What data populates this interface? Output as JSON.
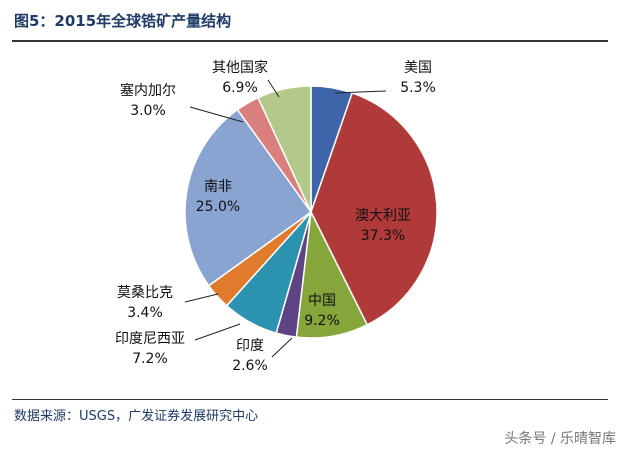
{
  "title": "图5：2015年全球锆矿产量结构",
  "source": "数据来源：USGS，广发证券发展研究中心",
  "watermark": "头条号 / 乐晴智库",
  "chart_data": {
    "type": "pie",
    "title": "图5：2015年全球锆矿产量结构",
    "slices": [
      {
        "name": "美国",
        "value": 5.3,
        "label": "5.3%",
        "color": "#3e65a8"
      },
      {
        "name": "澳大利亚",
        "value": 37.3,
        "label": "37.3%",
        "color": "#b03a39"
      },
      {
        "name": "中国",
        "value": 9.2,
        "label": "9.2%",
        "color": "#86a63b"
      },
      {
        "name": "印度",
        "value": 2.6,
        "label": "2.6%",
        "color": "#5e4484"
      },
      {
        "name": "印度尼西亚",
        "value": 7.2,
        "label": "7.2%",
        "color": "#2b93b0"
      },
      {
        "name": "莫桑比克",
        "value": 3.4,
        "label": "3.4%",
        "color": "#e07a2c"
      },
      {
        "name": "南非",
        "value": 25.0,
        "label": "25.0%",
        "color": "#8aa4d2"
      },
      {
        "name": "塞内加尔",
        "value": 3.0,
        "label": "3.0%",
        "color": "#d9807f"
      },
      {
        "name": "其他国家",
        "value": 6.9,
        "label": "6.9%",
        "color": "#b3c98a"
      }
    ]
  }
}
